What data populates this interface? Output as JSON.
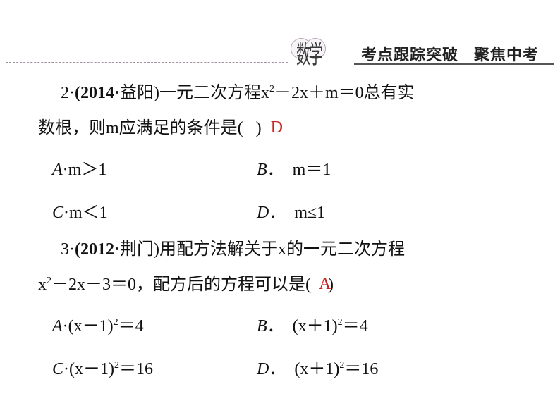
{
  "header": {
    "emblem": "数学",
    "right1": "考点跟踪突破",
    "right2": "聚焦中考"
  },
  "q2": {
    "num": "2",
    "dot": "·",
    "src_open": "(",
    "year": "2014",
    "sep": "·",
    "place": "益阳",
    "src_close": ")",
    "stem_a": "一元二次方程x",
    "sup1": "2",
    "stem_b": "－2x＋m＝0总有实",
    "line2_a": "数根，则m应满",
    "line2_b": "足的条件是(",
    "paren_close": ")",
    "answer": "D",
    "optA_label": "A",
    "optA": "m＞1",
    "optB_label": "B",
    "optB": "m＝1",
    "optC_label": "C",
    "optC": "m＜1",
    "optD_label": "D",
    "optD": "m≤1"
  },
  "q3": {
    "num": "3",
    "dot": "·",
    "src_open": "(",
    "year": "2012",
    "sep": "·",
    "place": "荆门",
    "src_close": ")",
    "stem_a": "用配方法解关于x的一元二次方程",
    "line2_a": "x",
    "sup1": "2",
    "line2_b": "－2x－3＝0，配方后的方程可以是(",
    "paren_close": ")",
    "answer": "A",
    "optA_label": "A",
    "optA_a": "(x－1)",
    "optA_sup": "2",
    "optA_b": "＝4",
    "optB_label": "B",
    "optB_a": "(x＋1)",
    "optB_sup": "2",
    "optB_b": "＝4",
    "optC_label": "C",
    "optC_a": "(x－1)",
    "optC_sup": "2",
    "optC_b": "＝16",
    "optD_label": "D",
    "optD_a": "(x＋1)",
    "optD_sup": "2",
    "optD_b": "＝16"
  },
  "style": {
    "answer_color": "#cc2020",
    "text_color": "#111111",
    "bg": "#ffffff",
    "body_fontsize": 24,
    "header_fontsize": 22
  }
}
